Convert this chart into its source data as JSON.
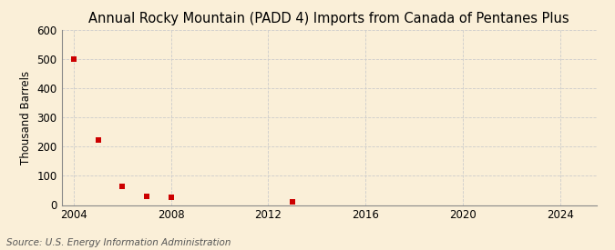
{
  "title": "Annual Rocky Mountain (PADD 4) Imports from Canada of Pentanes Plus",
  "ylabel": "Thousand Barrels",
  "source_text": "Source: U.S. Energy Information Administration",
  "background_color": "#faefd8",
  "plot_background_color": "#faefd8",
  "data_points": [
    {
      "year": 2004,
      "value": 500
    },
    {
      "year": 2005,
      "value": 222
    },
    {
      "year": 2006,
      "value": 63
    },
    {
      "year": 2007,
      "value": 30
    },
    {
      "year": 2008,
      "value": 25
    },
    {
      "year": 2013,
      "value": 10
    }
  ],
  "marker_color": "#cc0000",
  "marker_style": "s",
  "marker_size": 4,
  "xlim": [
    2003.5,
    2025.5
  ],
  "ylim": [
    0,
    600
  ],
  "yticks": [
    0,
    100,
    200,
    300,
    400,
    500,
    600
  ],
  "xticks": [
    2004,
    2008,
    2012,
    2016,
    2020,
    2024
  ],
  "grid_color": "#cccccc",
  "grid_linestyle": "--",
  "title_fontsize": 10.5,
  "label_fontsize": 8.5,
  "tick_fontsize": 8.5,
  "source_fontsize": 7.5
}
